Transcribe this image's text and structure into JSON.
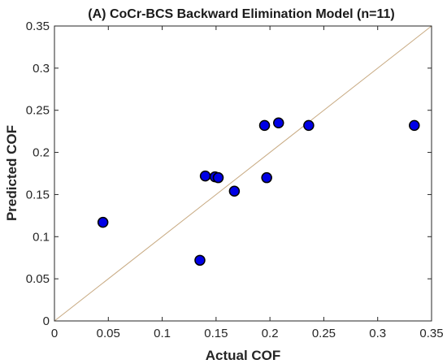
{
  "chart_data": {
    "type": "scatter",
    "title": "(A) CoCr-BCS Backward Elimination Model (n=11)",
    "xlabel": "Actual COF",
    "ylabel": "Predicted COF",
    "xlim": [
      0,
      0.35
    ],
    "ylim": [
      0,
      0.35
    ],
    "x_ticks": [
      0,
      0.05,
      0.1,
      0.15,
      0.2,
      0.25,
      0.3,
      0.35
    ],
    "y_ticks": [
      0,
      0.05,
      0.1,
      0.15,
      0.2,
      0.25,
      0.3,
      0.35
    ],
    "x_tick_labels": [
      "0",
      "0.05",
      "0.1",
      "0.15",
      "0.2",
      "0.25",
      "0.3",
      "0.35"
    ],
    "y_tick_labels": [
      "0",
      "0.05",
      "0.1",
      "0.15",
      "0.2",
      "0.25",
      "0.3",
      "0.35"
    ],
    "grid": false,
    "box": true,
    "reference_line": {
      "kind": "y=x",
      "color": "#c8aa82"
    },
    "marker": {
      "fill": "#0000e6",
      "edge": "#000000"
    },
    "series": [
      {
        "x": [
          0.045,
          0.135,
          0.14,
          0.149,
          0.152,
          0.167,
          0.195,
          0.197,
          0.208,
          0.236,
          0.334
        ],
        "y": [
          0.117,
          0.072,
          0.172,
          0.171,
          0.17,
          0.154,
          0.232,
          0.17,
          0.235,
          0.232,
          0.232
        ]
      }
    ]
  }
}
